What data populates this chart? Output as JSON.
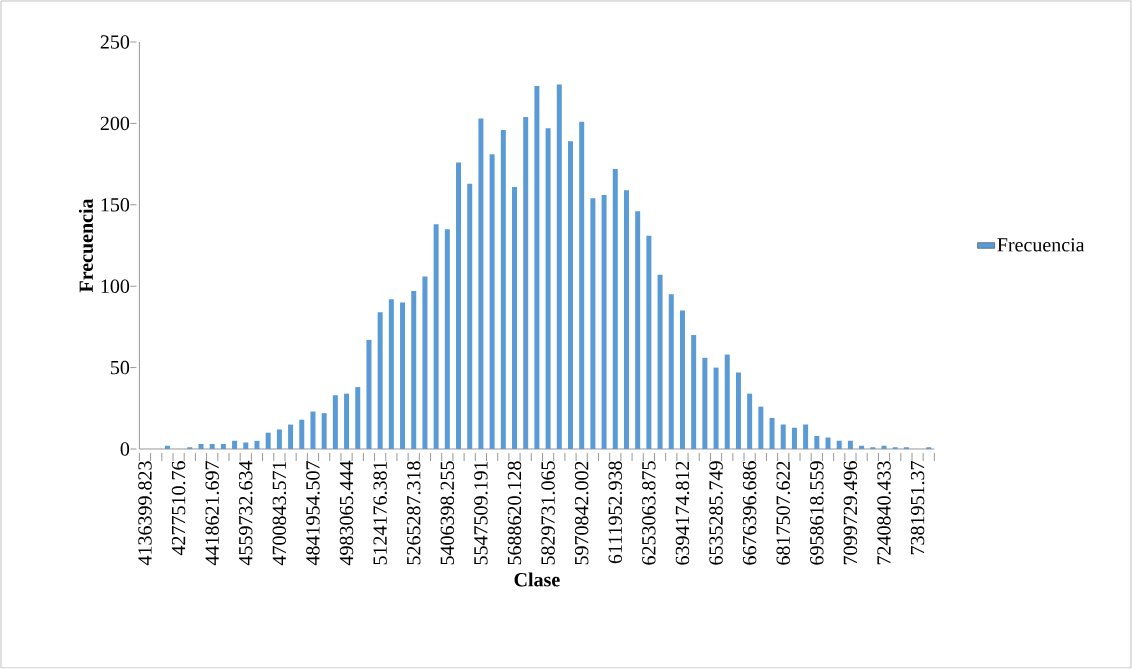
{
  "chart_data": {
    "type": "bar",
    "xlabel": "Clase",
    "ylabel": "Frecuencia",
    "categories": [
      "4136399.823",
      null,
      null,
      "4277510.76",
      null,
      null,
      "4418621.697",
      null,
      null,
      "4559732.634",
      null,
      null,
      "4700843.571",
      null,
      null,
      "4841954.507",
      null,
      null,
      "4983065.444",
      null,
      null,
      "5124176.381",
      null,
      null,
      "5265287.318",
      null,
      null,
      "5406398.255",
      null,
      null,
      "5547509.191",
      null,
      null,
      "5688620.128",
      null,
      null,
      "5829731.065",
      null,
      null,
      "5970842.002",
      null,
      null,
      "6111952.938",
      null,
      null,
      "6253063.875",
      null,
      null,
      "6394174.812",
      null,
      null,
      "6535285.749",
      null,
      null,
      "6676396.686",
      null,
      null,
      "6817507.622",
      null,
      null,
      "6958618.559",
      null,
      null,
      "7099729.496",
      null,
      null,
      "7240840.433",
      null,
      null,
      "7381951.37",
      null
    ],
    "series": [
      {
        "name": "Frecuencia",
        "color": "#5b9bd5",
        "values": [
          0,
          0,
          2,
          0,
          1,
          3,
          3,
          3,
          5,
          4,
          5,
          10,
          12,
          15,
          18,
          23,
          22,
          33,
          34,
          38,
          67,
          84,
          92,
          90,
          97,
          106,
          138,
          135,
          176,
          163,
          203,
          181,
          196,
          161,
          204,
          223,
          197,
          224,
          189,
          201,
          154,
          156,
          172,
          159,
          146,
          131,
          107,
          95,
          85,
          70,
          56,
          50,
          58,
          47,
          34,
          26,
          19,
          15,
          13,
          15,
          8,
          7,
          5,
          5,
          2,
          1,
          2,
          1,
          1,
          0,
          1
        ]
      }
    ],
    "ylim": [
      0,
      250
    ],
    "yticks": [
      0,
      50,
      100,
      150,
      200,
      250
    ],
    "grid": false,
    "legend": "right"
  }
}
